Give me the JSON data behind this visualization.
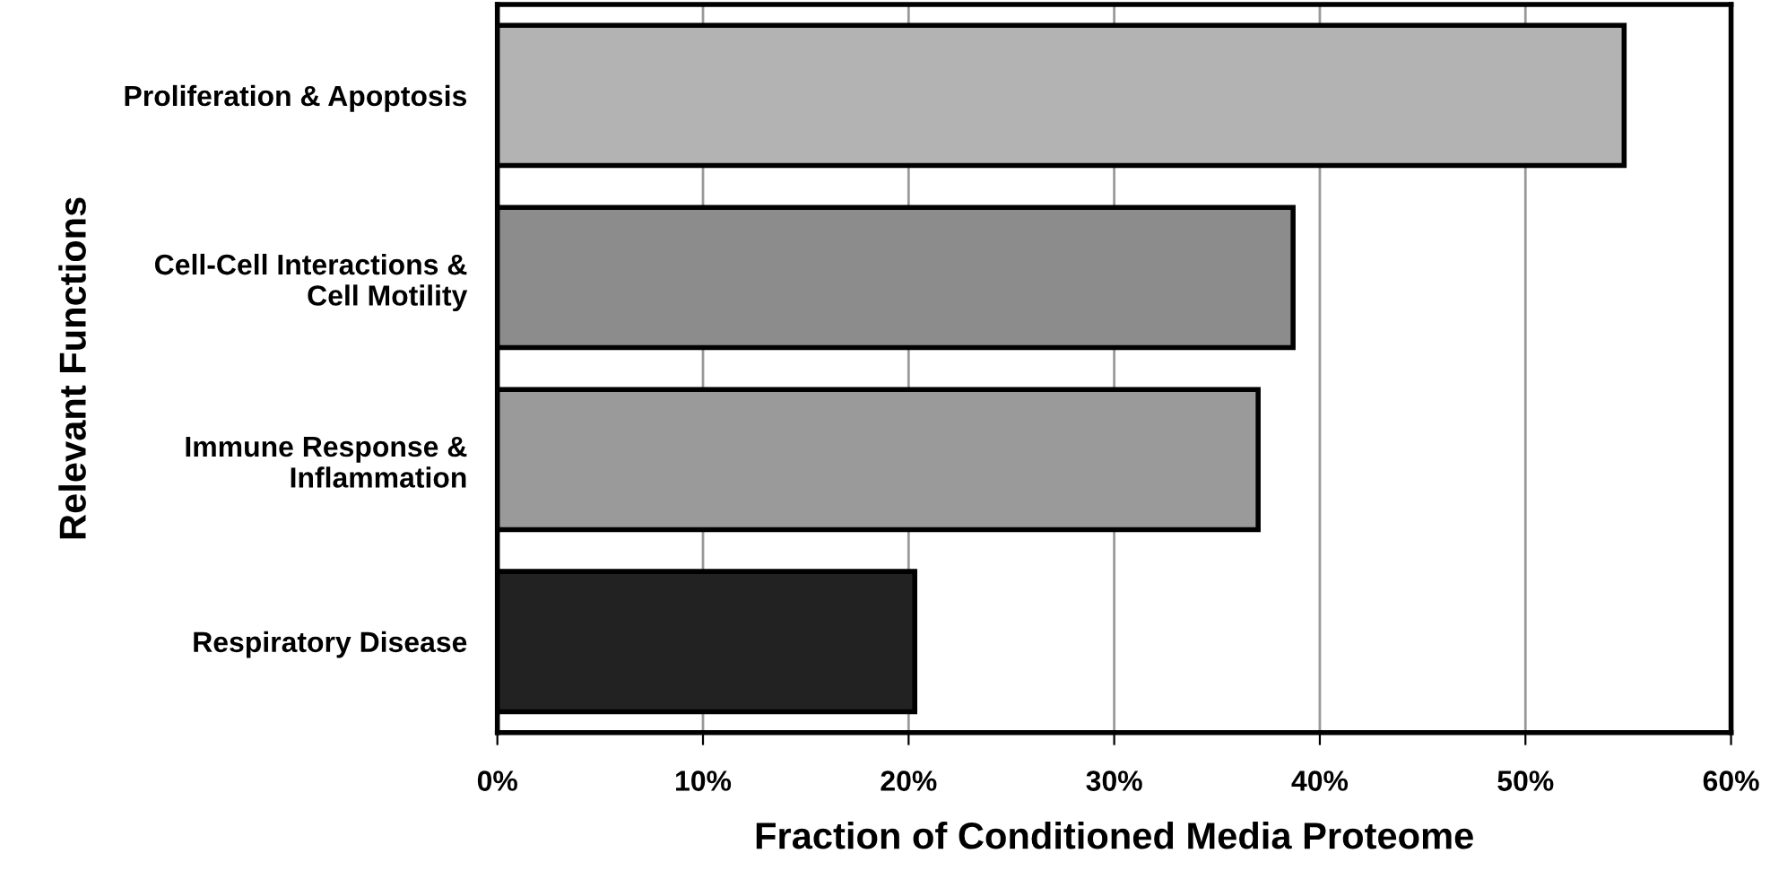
{
  "chart_data": {
    "type": "bar",
    "orientation": "horizontal",
    "xlabel": "Fraction of Conditioned Media Proteome",
    "ylabel": "Relevant Functions",
    "categories": [
      "Proliferation & Apoptosis",
      "Cell-Cell Interactions &\nCell Motility",
      "Immune Response &\nInflammation",
      "Respiratory Disease"
    ],
    "values": [
      54.8,
      38.7,
      37.0,
      20.3
    ],
    "colors": [
      "#b3b3b3",
      "#8c8c8c",
      "#9a9a9a",
      "#222222"
    ],
    "xlim": [
      0,
      60
    ],
    "xticks": [
      {
        "value": 0,
        "label": "0%"
      },
      {
        "value": 10,
        "label": "10%"
      },
      {
        "value": 20,
        "label": "20%"
      },
      {
        "value": 30,
        "label": "30%"
      },
      {
        "value": 40,
        "label": "40%"
      },
      {
        "value": 50,
        "label": "50%"
      },
      {
        "value": 60,
        "label": "60%"
      }
    ],
    "grid": "x",
    "legend": false
  }
}
